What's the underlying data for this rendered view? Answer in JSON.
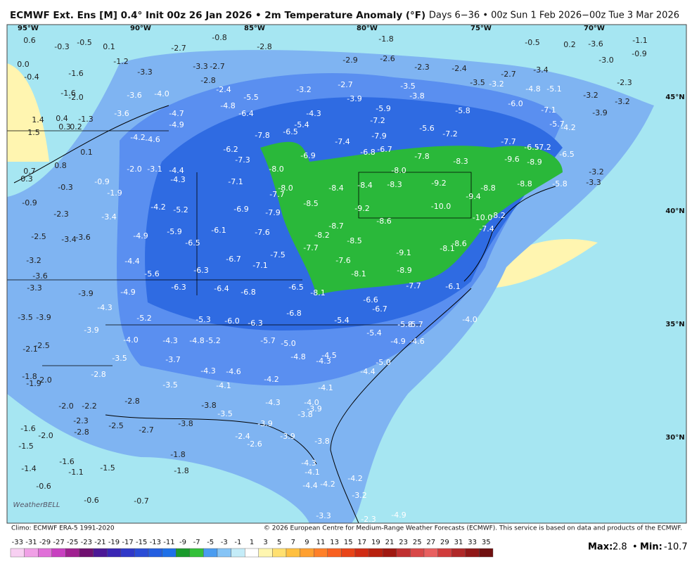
{
  "header": {
    "title": "ECMWF Ext. Ens [M] 0.4° Init 00z 26 Jan 2026 • 2m Temperature Anomaly (°F)",
    "valid": "Days 6−36 • 00z Sun 1 Feb 2026−00z Tue 3 Mar 2026"
  },
  "longitude_labels": [
    "95°W",
    "90°W",
    "85°W",
    "80°W",
    "75°W",
    "70°W"
  ],
  "latitude_labels": [
    "45°N",
    "40°N",
    "35°N",
    "30°N"
  ],
  "map_labels": [
    "0.6",
    "-0.3",
    "-0.5",
    "0.1",
    "-0.8",
    "-2.8",
    "-1.8",
    "-2.9",
    "-2.6",
    "-2.3",
    "-2.4",
    "-2.7",
    "-0.5",
    "-3.0",
    "-2.3",
    "0.0",
    "-0.4",
    "-1.6",
    "-3.3",
    "-4.0",
    "-3.6",
    "-4.7",
    "-4.9",
    "-3.6",
    "-4.2",
    "-4.6",
    "1.4",
    "0.4",
    "1.5",
    "0.1",
    "0.8",
    "0.7",
    "0.3",
    "-0.3",
    "-0.9",
    "-2.3",
    "-2.0",
    "-3.1",
    "-4.4",
    "-4.3",
    "-5.2",
    "-4.2",
    "-3.4",
    "-4.9",
    "-5.9",
    "-6.5",
    "-6.1",
    "-6.9",
    "-7.1",
    "-6.2",
    "-7.3",
    "-7.8",
    "-6.4",
    "-5.5",
    "-4.8",
    "-2.4",
    "-6.5",
    "-5.4",
    "-4.3",
    "-3.2",
    "-2.7",
    "-3.9",
    "-5.9",
    "-3.5",
    "-3.8",
    "-7.2",
    "-7.9",
    "-7.4",
    "-6.8",
    "-6.7",
    "-6.9",
    "-8.0",
    "-8.0",
    "-7.7",
    "-7.9",
    "-7.6",
    "-7.5",
    "-7.1",
    "-6.7",
    "-6.3",
    "-6.3",
    "-6.4",
    "-6.8",
    "-6.5",
    "-8.1",
    "-8.5",
    "-8.4",
    "-8.4",
    "-8.3",
    "-8.0",
    "-7.8",
    "-8.3",
    "-9.2",
    "-10.0",
    "-9.2",
    "-8.7",
    "-8.2",
    "-7.7",
    "-8.5",
    "-7.6",
    "-8.6",
    "-8.1",
    "-9.1",
    "-8.9",
    "-7.7",
    "-8.1",
    "-8.6",
    "-8.8",
    "-9.4",
    "-8.8",
    "-8.9",
    "-9.6",
    "-7.7",
    "-6.5",
    "-7.2",
    "-6.5",
    "-10.0",
    "-8.2",
    "-7.4",
    "-6.1",
    "-6.6",
    "-6.7",
    "-6.8",
    "-6.0",
    "-6.3",
    "-5.3",
    "-5.4",
    "-5.8",
    "-5.7",
    "-4.0",
    "-5.4",
    "-4.9",
    "-4.6",
    "-5.2",
    "-5.6",
    "-4.4",
    "-4.9",
    "-4.3",
    "-3.9",
    "-3.6",
    "-3.4",
    "-2.5",
    "-3.2",
    "-3.6",
    "-3.3",
    "-3.5",
    "-3.9",
    "-3.9",
    "-4.0",
    "-4.3",
    "-4.8",
    "-5.2",
    "-5.7",
    "-5.0",
    "-4.8",
    "-4.5",
    "-4.3",
    "-5.0",
    "-4.4",
    "-2.5",
    "-2.1",
    "-3.5",
    "-3.7",
    "-4.3",
    "-4.6",
    "-4.2",
    "-4.1",
    "-3.5",
    "-2.8",
    "-1.8",
    "-1.9",
    "-2.0",
    "-4.1",
    "-2.8",
    "-3.8",
    "-4.3",
    "-4.0",
    "-3.9",
    "-3.8",
    "-3.5",
    "-2.0",
    "-2.2",
    "-2.5",
    "-2.3",
    "-2.8",
    "-1.6",
    "-2.0",
    "-2.7",
    "-3.8",
    "-3.9",
    "-3.9",
    "-3.8",
    "-2.4",
    "-2.6",
    "-1.5",
    "-1.8",
    "-1.6",
    "-1.1",
    "-1.5",
    "-1.8",
    "-1.4",
    "-4.3",
    "-4.1",
    "-4.2",
    "-4.2",
    "-4.4",
    "-0.6",
    "-0.6",
    "-0.7",
    "-3.2",
    "-3.3",
    "-2.3",
    "-4.9",
    "-6.0",
    "-7.1",
    "-5.7",
    "-4.2",
    "-3.9",
    "-4.8",
    "-5.1",
    "-3.2",
    "-3.2",
    "-3.4",
    "-3.5",
    "-3.2",
    "-5.8",
    "-5.6",
    "-7.2",
    "-5.8",
    "-3.2",
    "-3.3",
    "0.2",
    "-3.6",
    "-1.1",
    "-0.9",
    "-1.3",
    "0.3",
    "0.2",
    "-1.6",
    "-2.0",
    "-3.3",
    "-2.7",
    "-2.8",
    "-1.2",
    "-2.7",
    "-1.9",
    "-0.9"
  ],
  "footer": {
    "climo": "Climo: ECMWF ERA-5 1991-2020",
    "copyright": "© 2026 European Centre for Medium-Range Weather Forecasts (ECMWF). This service is based on data and products of the ECMWF."
  },
  "logo": "WeatherBELL",
  "colorbar": {
    "ticks": [
      -33,
      -31,
      -29,
      -27,
      -25,
      -23,
      -21,
      -19,
      -17,
      -15,
      -13,
      -11,
      -9,
      -7,
      -5,
      -3,
      -1,
      1,
      3,
      5,
      7,
      9,
      11,
      13,
      15,
      17,
      19,
      21,
      23,
      25,
      27,
      29,
      31,
      33,
      35
    ],
    "colors": [
      "#f8d0f2",
      "#f0a0e6",
      "#e070d8",
      "#c840c0",
      "#a02090",
      "#701070",
      "#4c1896",
      "#3a26b4",
      "#3038c8",
      "#2a4cd6",
      "#245ee0",
      "#1e70e8",
      "#1a9a2c",
      "#34c03a",
      "#4a9cf0",
      "#86c4f6",
      "#c4ecf8",
      "#ffffff",
      "#fff6b0",
      "#ffe070",
      "#ffc040",
      "#ffa030",
      "#ff8028",
      "#f86020",
      "#e84418",
      "#d02c14",
      "#b8200e",
      "#a01810",
      "#c03030",
      "#d84848",
      "#e86060",
      "#d03c3c",
      "#b02828",
      "#901818",
      "#701010"
    ]
  },
  "stats": {
    "max_label": "Max:",
    "max": 2.8,
    "separator": "•",
    "min_label": "Min:",
    "min": -10.7
  }
}
